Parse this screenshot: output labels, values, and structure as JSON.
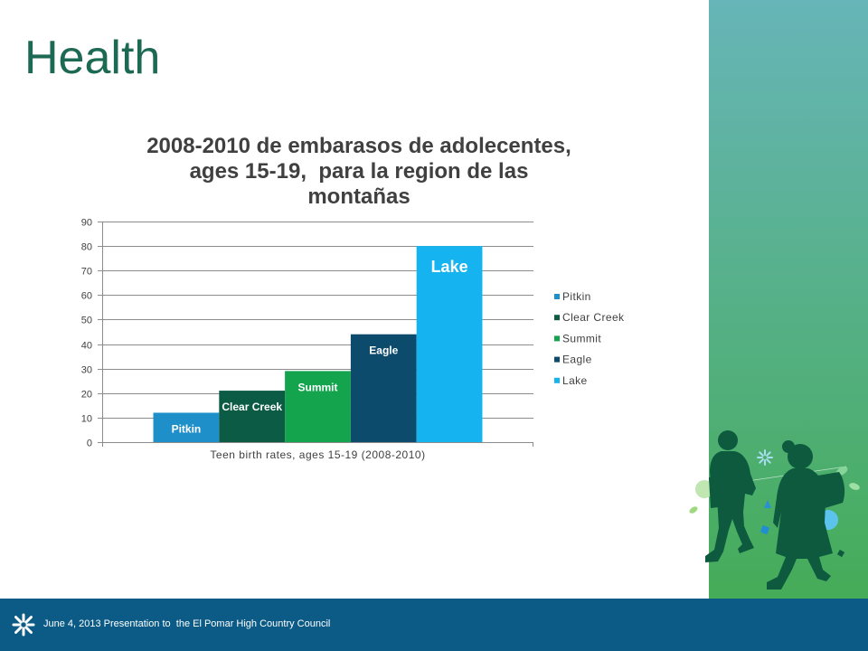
{
  "slide": {
    "title": "Health"
  },
  "chart_data": {
    "type": "bar",
    "title": "2008-2010 de embarasos de adolecentes, ages 15-19,  para la region de las montañas",
    "categories": [
      "Teen birth rates, ages 15-19 (2008-2010)"
    ],
    "ylim": [
      0,
      90
    ],
    "yticks": [
      0,
      10,
      20,
      30,
      40,
      50,
      60,
      70,
      80,
      90
    ],
    "series": [
      {
        "name": "Pitkin",
        "values": [
          12
        ],
        "color": "#1f8fca"
      },
      {
        "name": "Clear Creek",
        "values": [
          21
        ],
        "color": "#0c5c45"
      },
      {
        "name": "Summit",
        "values": [
          29
        ],
        "color": "#14a44e"
      },
      {
        "name": "Eagle",
        "values": [
          44
        ],
        "color": "#0d4b6d"
      },
      {
        "name": "Lake",
        "values": [
          80
        ],
        "color": "#15b4f0"
      }
    ],
    "data_labels": true,
    "grid": true,
    "legend_position": "right"
  },
  "footer": {
    "text": "June 4, 2013 Presentation to  the El Pomar High Country Council"
  },
  "icons": {
    "footer_logo": "flower-logo-icon",
    "illustration": "children-silhouette-icon"
  },
  "theme": {
    "title_color": "#1d6a54",
    "band_top": "#67b5b8",
    "band_bottom": "#45ac58",
    "footer_color": "#0b5b86",
    "silhouette_color": "#0d5a3e"
  }
}
